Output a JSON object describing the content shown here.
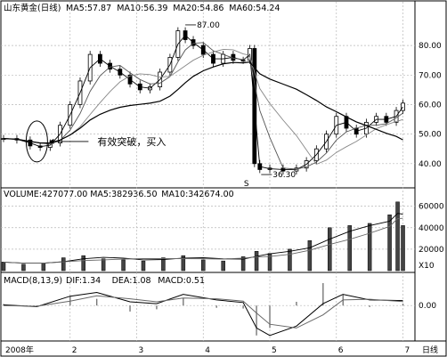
{
  "chart_data": {
    "type": "candlestick-with-volume-macd",
    "title": "山东黄金(日线)",
    "period_label": "2008年",
    "corner_label": "日线",
    "price_panel": {
      "indicators": [
        {
          "label": "MA5:57.87",
          "color": "#000000"
        },
        {
          "label": "MA10:56.39",
          "color": "#555555"
        },
        {
          "label": "MA20:54.86",
          "color": "#777777"
        },
        {
          "label": "MA60:54.24",
          "color": "#000000"
        }
      ],
      "y_ticks": [
        40,
        50,
        60,
        70,
        80
      ],
      "y_tick_labels": [
        "40.00",
        "50.00",
        "60.00",
        "70.00",
        "80.00"
      ],
      "ylim": [
        33,
        90
      ],
      "high_annotation": {
        "label": "87.00",
        "value": 87.0,
        "month": 3.73
      },
      "low_annotation": {
        "label": "36.30",
        "value": 36.3,
        "month": 4.87
      },
      "breakout_annotation": {
        "label": "有效突破，买入",
        "month": 1.5,
        "value": 47.5
      },
      "s_marker": {
        "label": "S",
        "month": 4.65
      },
      "close": [
        {
          "m": 1.0,
          "v": 48.5
        },
        {
          "m": 1.2,
          "v": 48.0
        },
        {
          "m": 1.4,
          "v": 46.0
        },
        {
          "m": 1.55,
          "v": 45.5
        },
        {
          "m": 1.7,
          "v": 47.0
        },
        {
          "m": 1.85,
          "v": 53.0
        },
        {
          "m": 2.0,
          "v": 60.0
        },
        {
          "m": 2.15,
          "v": 68.0
        },
        {
          "m": 2.3,
          "v": 77.0
        },
        {
          "m": 2.45,
          "v": 74.0
        },
        {
          "m": 2.6,
          "v": 72.0
        },
        {
          "m": 2.75,
          "v": 70.0
        },
        {
          "m": 2.9,
          "v": 67.0
        },
        {
          "m": 3.05,
          "v": 65.0
        },
        {
          "m": 3.2,
          "v": 66.0
        },
        {
          "m": 3.35,
          "v": 71.0
        },
        {
          "m": 3.5,
          "v": 76.0
        },
        {
          "m": 3.62,
          "v": 85.0
        },
        {
          "m": 3.73,
          "v": 82.0
        },
        {
          "m": 3.85,
          "v": 80.0
        },
        {
          "m": 4.0,
          "v": 77.0
        },
        {
          "m": 4.15,
          "v": 74.0
        },
        {
          "m": 4.3,
          "v": 77.0
        },
        {
          "m": 4.45,
          "v": 75.0
        },
        {
          "m": 4.6,
          "v": 75.0
        },
        {
          "m": 4.7,
          "v": 79.0
        },
        {
          "m": 4.77,
          "v": 40.0
        },
        {
          "m": 4.85,
          "v": 38.0
        },
        {
          "m": 5.0,
          "v": 38.5
        },
        {
          "m": 5.2,
          "v": 37.5
        },
        {
          "m": 5.4,
          "v": 38.5
        },
        {
          "m": 5.55,
          "v": 41.0
        },
        {
          "m": 5.7,
          "v": 45.0
        },
        {
          "m": 5.85,
          "v": 50.0
        },
        {
          "m": 6.0,
          "v": 56.0
        },
        {
          "m": 6.15,
          "v": 52.0
        },
        {
          "m": 6.3,
          "v": 50.0
        },
        {
          "m": 6.45,
          "v": 54.0
        },
        {
          "m": 6.6,
          "v": 56.0
        },
        {
          "m": 6.75,
          "v": 54.0
        },
        {
          "m": 6.9,
          "v": 58.0
        },
        {
          "m": 7.0,
          "v": 60.5
        }
      ]
    },
    "volume_panel": {
      "indicators": [
        {
          "label": "VOLUME:427077.00",
          "color": "#000000"
        },
        {
          "label": "MA5:382936.50",
          "color": "#000000"
        },
        {
          "label": "MA10:342674.00",
          "color": "#000000"
        }
      ],
      "y_ticks": [
        20000,
        40000,
        60000
      ],
      "y_tick_labels": [
        "20000",
        "40000",
        "60000"
      ],
      "unit_label": "X10",
      "ylim": [
        0,
        68000
      ],
      "values": [
        {
          "m": 1.0,
          "v": 8000
        },
        {
          "m": 1.3,
          "v": 6000
        },
        {
          "m": 1.6,
          "v": 7000
        },
        {
          "m": 1.9,
          "v": 12000
        },
        {
          "m": 2.2,
          "v": 14000
        },
        {
          "m": 2.5,
          "v": 11000
        },
        {
          "m": 2.8,
          "v": 10000
        },
        {
          "m": 3.1,
          "v": 9000
        },
        {
          "m": 3.4,
          "v": 12000
        },
        {
          "m": 3.7,
          "v": 14000
        },
        {
          "m": 4.0,
          "v": 10000
        },
        {
          "m": 4.3,
          "v": 9000
        },
        {
          "m": 4.6,
          "v": 13000
        },
        {
          "m": 4.8,
          "v": 18000
        },
        {
          "m": 5.0,
          "v": 16000
        },
        {
          "m": 5.3,
          "v": 20000
        },
        {
          "m": 5.6,
          "v": 28000
        },
        {
          "m": 5.9,
          "v": 40000
        },
        {
          "m": 6.2,
          "v": 42000
        },
        {
          "m": 6.5,
          "v": 44000
        },
        {
          "m": 6.8,
          "v": 52000
        },
        {
          "m": 6.92,
          "v": 64000
        },
        {
          "m": 7.0,
          "v": 42000
        }
      ]
    },
    "macd_panel": {
      "label": "MACD(8,13,9)",
      "indicators": [
        {
          "label": "DIF:1.34",
          "color": "#000000"
        },
        {
          "label": "DEA:1.08",
          "color": "#000000"
        },
        {
          "label": "MACD:0.51",
          "color": "#777777"
        }
      ],
      "y_ticks": [
        0
      ],
      "y_tick_labels": [
        "0.00"
      ],
      "ylim": [
        -9,
        6
      ],
      "dif": [
        {
          "m": 1.0,
          "v": 0.2
        },
        {
          "m": 1.5,
          "v": -0.3
        },
        {
          "m": 2.0,
          "v": 2.5
        },
        {
          "m": 2.4,
          "v": 3.5
        },
        {
          "m": 2.9,
          "v": 1.0
        },
        {
          "m": 3.3,
          "v": 0.5
        },
        {
          "m": 3.7,
          "v": 3.0
        },
        {
          "m": 4.2,
          "v": 1.5
        },
        {
          "m": 4.6,
          "v": 0.8
        },
        {
          "m": 4.8,
          "v": -6.0
        },
        {
          "m": 5.0,
          "v": -8.0
        },
        {
          "m": 5.4,
          "v": -5.5
        },
        {
          "m": 5.8,
          "v": 0.5
        },
        {
          "m": 6.1,
          "v": 3.0
        },
        {
          "m": 6.5,
          "v": 1.5
        },
        {
          "m": 7.0,
          "v": 1.34
        }
      ],
      "dea": [
        {
          "m": 1.0,
          "v": 0.0
        },
        {
          "m": 1.5,
          "v": -0.2
        },
        {
          "m": 2.0,
          "v": 1.2
        },
        {
          "m": 2.4,
          "v": 2.6
        },
        {
          "m": 2.9,
          "v": 1.8
        },
        {
          "m": 3.3,
          "v": 1.0
        },
        {
          "m": 3.7,
          "v": 2.0
        },
        {
          "m": 4.2,
          "v": 1.8
        },
        {
          "m": 4.6,
          "v": 1.2
        },
        {
          "m": 4.8,
          "v": -2.0
        },
        {
          "m": 5.0,
          "v": -5.0
        },
        {
          "m": 5.4,
          "v": -6.0
        },
        {
          "m": 5.8,
          "v": -2.5
        },
        {
          "m": 6.1,
          "v": 1.5
        },
        {
          "m": 6.5,
          "v": 1.7
        },
        {
          "m": 7.0,
          "v": 1.08
        }
      ]
    },
    "x_axis": {
      "tick_labels": [
        {
          "label": "2008年",
          "month": 1
        },
        {
          "label": "2",
          "month": 2
        },
        {
          "label": "3",
          "month": 3
        },
        {
          "label": "4",
          "month": 4
        },
        {
          "label": "5",
          "month": 5
        },
        {
          "label": "6",
          "month": 6
        },
        {
          "label": "7",
          "month": 7
        }
      ],
      "xlim": [
        1,
        7.1
      ]
    }
  }
}
